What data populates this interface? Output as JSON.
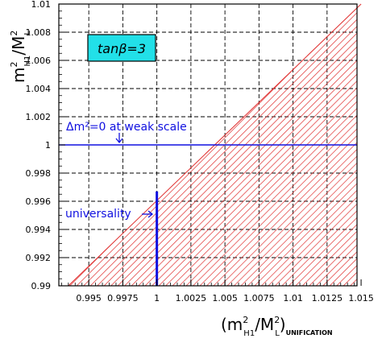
{
  "chart_data": {
    "type": "area",
    "title": "",
    "xlim": [
      0.993,
      1.015
    ],
    "ylim": [
      0.99,
      1.01
    ],
    "x_ticks": [
      "0.995",
      "0.9975",
      "1",
      "1.0025",
      "1.005",
      "1.0075",
      "1.01",
      "1.0125",
      "1.015"
    ],
    "x_tick_values": [
      0.995,
      0.9975,
      1.0,
      1.0025,
      1.005,
      1.0075,
      1.01,
      1.0125,
      1.015
    ],
    "y_ticks": [
      "0.99",
      "0.992",
      "0.994",
      "0.996",
      "0.998",
      "1",
      "1.002",
      "1.004",
      "1.006",
      "1.008",
      "1.01"
    ],
    "y_tick_values": [
      0.99,
      0.992,
      0.994,
      0.996,
      0.998,
      1.0,
      1.002,
      1.004,
      1.006,
      1.008,
      1.01
    ],
    "xlabel": {
      "base": "(m",
      "sup": "2",
      "sub": "H1",
      "mid": "/M",
      "sup2": "2",
      "sub2": "L",
      "tail": ")",
      "subscript_tail": "UNIFICATION"
    },
    "ylabel": {
      "base": "m",
      "sup": "2",
      "sub": "H1",
      "mid": "/M",
      "sup2": "2",
      "sub2": "L"
    },
    "grid": true,
    "excluded_region": {
      "description_hidden": true,
      "boundary": [
        [
          0.9935,
          0.99
        ],
        [
          1.015,
          1.01
        ]
      ],
      "color": "#e03030"
    },
    "horizontal_line": {
      "y": 1.0,
      "color": "#1010e0"
    },
    "vertical_line": {
      "x": 1.0,
      "y_range": [
        0.99,
        0.9967
      ],
      "color": "#1010e0"
    },
    "annotations": {
      "box_label": "tanβ=3",
      "box_color": "#22e0e8",
      "weak_scale": "Δm²=0 at weak scale",
      "universality": "universality"
    }
  }
}
